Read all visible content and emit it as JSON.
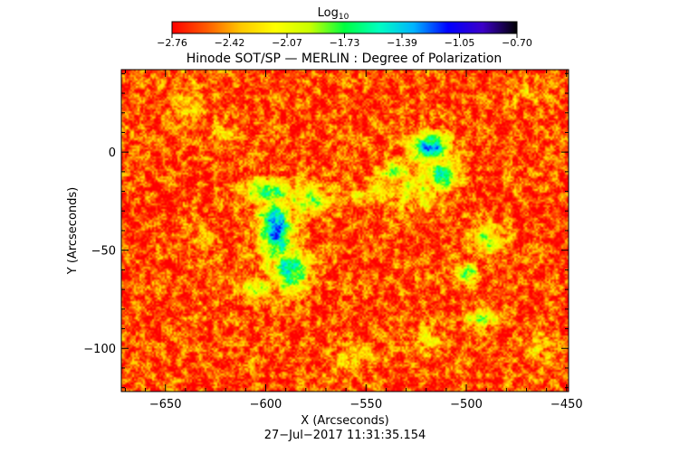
{
  "chart_data": {
    "type": "heatmap",
    "title": "Hinode SOT/SP — MERLIN : Degree of Polarization",
    "colorbar": {
      "label_main": "Log",
      "label_sub": "10",
      "ticks": [
        "−2.76",
        "−2.42",
        "−2.07",
        "−1.73",
        "−1.39",
        "−1.05",
        "−0.70"
      ],
      "range": [
        -2.76,
        -0.7
      ],
      "colormap": [
        "#ff0000",
        "#ff5a00",
        "#ffc800",
        "#ffff00",
        "#c8ff00",
        "#00ff40",
        "#00ffc0",
        "#00b4ff",
        "#0000ff",
        "#3c00c8",
        "#000000"
      ]
    },
    "xlabel": "X (Arcseconds)",
    "ylabel": "Y (Arcseconds)",
    "xlim": [
      -672,
      -449
    ],
    "ylim": [
      -122,
      42
    ],
    "xticks": [
      {
        "value": -650,
        "label": "−650"
      },
      {
        "value": -600,
        "label": "−600"
      },
      {
        "value": -550,
        "label": "−550"
      },
      {
        "value": -500,
        "label": "−500"
      },
      {
        "value": -450,
        "label": "−450"
      }
    ],
    "yticks": [
      {
        "value": 0,
        "label": "0"
      },
      {
        "value": -50,
        "label": "−50"
      },
      {
        "value": -100,
        "label": "−100"
      }
    ],
    "background_level": -2.6,
    "regions": [
      {
        "x": -595,
        "y": -40,
        "rx": 9,
        "ry": 18,
        "level": -1.3
      },
      {
        "x": -598,
        "y": -20,
        "rx": 14,
        "ry": 6,
        "level": -1.6
      },
      {
        "x": -588,
        "y": -60,
        "rx": 10,
        "ry": 12,
        "level": -1.5
      },
      {
        "x": -578,
        "y": -25,
        "rx": 14,
        "ry": 8,
        "level": -1.9
      },
      {
        "x": -605,
        "y": -70,
        "rx": 9,
        "ry": 6,
        "level": -2.0
      },
      {
        "x": -518,
        "y": 2,
        "rx": 10,
        "ry": 8,
        "level": -1.3
      },
      {
        "x": -512,
        "y": -12,
        "rx": 8,
        "ry": 7,
        "level": -1.4
      },
      {
        "x": -535,
        "y": -10,
        "rx": 8,
        "ry": 6,
        "level": -1.8
      },
      {
        "x": -525,
        "y": -18,
        "rx": 16,
        "ry": 12,
        "level": -2.1
      },
      {
        "x": -546,
        "y": -22,
        "rx": 14,
        "ry": 6,
        "level": -2.1
      },
      {
        "x": -490,
        "y": -45,
        "rx": 10,
        "ry": 8,
        "level": -2.0
      },
      {
        "x": -500,
        "y": -62,
        "rx": 6,
        "ry": 5,
        "level": -1.7
      },
      {
        "x": -492,
        "y": -85,
        "rx": 9,
        "ry": 4,
        "level": -1.8
      },
      {
        "x": -520,
        "y": -95,
        "rx": 7,
        "ry": 8,
        "level": -2.2
      },
      {
        "x": -555,
        "y": -105,
        "rx": 12,
        "ry": 6,
        "level": -2.3
      },
      {
        "x": -640,
        "y": 25,
        "rx": 10,
        "ry": 10,
        "level": -2.3
      },
      {
        "x": -622,
        "y": 10,
        "rx": 6,
        "ry": 6,
        "level": -2.3
      },
      {
        "x": -465,
        "y": -100,
        "rx": 8,
        "ry": 8,
        "level": -2.3
      },
      {
        "x": -468,
        "y": 30,
        "rx": 10,
        "ry": 6,
        "level": -2.3
      },
      {
        "x": -630,
        "y": -45,
        "rx": 6,
        "ry": 6,
        "level": -2.2
      }
    ]
  },
  "footer": {
    "timestamp": "27−Jul−2017 11:31:35.154"
  }
}
